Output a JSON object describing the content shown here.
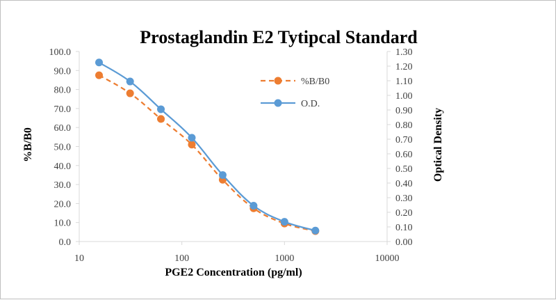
{
  "chart_data": {
    "type": "line",
    "title": "Prostaglandin  E2 Tytipcal Standard",
    "xlabel": "PGE2 Concentration (pg/ml)",
    "ylabel": "%B/B0",
    "y2label": "Optical Density",
    "xscale": "log",
    "xlim": [
      10,
      10000
    ],
    "ylim": [
      0,
      100
    ],
    "y2lim": [
      0,
      1.3
    ],
    "x_ticks": [
      "10",
      "100",
      "1000",
      "10000"
    ],
    "y_ticks": [
      "0.0",
      "10.0",
      "20.0",
      "30.0",
      "40.0",
      "50.0",
      "60.0",
      "70.0",
      "80.0",
      "90.0",
      "100.0"
    ],
    "y2_ticks": [
      "0.00",
      "0.10",
      "0.20",
      "0.30",
      "0.40",
      "0.50",
      "0.60",
      "0.70",
      "0.80",
      "0.90",
      "1.00",
      "1.10",
      "1.20",
      "1.30"
    ],
    "grid": false,
    "legend_position": "top-right",
    "x": [
      15.6,
      31.3,
      62.5,
      125,
      250,
      500,
      1000,
      2000
    ],
    "series": [
      {
        "name": "%B/B0",
        "axis": "left",
        "color": "#ED7D31",
        "style": "dashed",
        "values": [
          87.5,
          78,
          64.5,
          51,
          32.5,
          17.5,
          9.5,
          5.5
        ]
      },
      {
        "name": "O.D.",
        "axis": "right",
        "color": "#5B9BD5",
        "style": "solid",
        "values": [
          1.225,
          1.095,
          0.905,
          0.71,
          0.455,
          0.245,
          0.135,
          0.075
        ]
      }
    ]
  }
}
